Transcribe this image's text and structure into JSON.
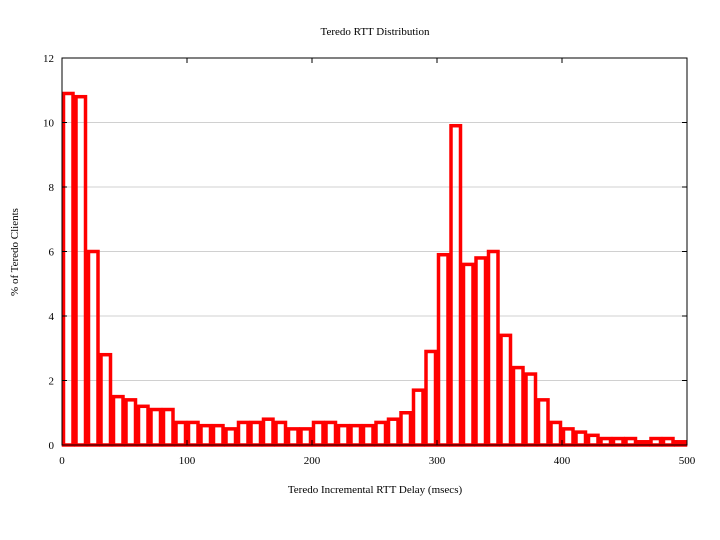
{
  "chart_data": {
    "type": "bar",
    "title": "Teredo RTT Distribution",
    "xlabel": "Teredo Incremental RTT Delay (msecs)",
    "ylabel": "% of Teredo Clients",
    "xlim": [
      0,
      500
    ],
    "ylim": [
      0,
      12
    ],
    "xticks": [
      "0",
      "100",
      "200",
      "300",
      "400",
      "500"
    ],
    "yticks": [
      "0",
      "2",
      "4",
      "6",
      "8",
      "10",
      "12"
    ],
    "grid": "horizontal",
    "bin_width": 10,
    "bar_color": "#ff0000",
    "bar_style": "outline",
    "x": [
      0,
      10,
      20,
      30,
      40,
      50,
      60,
      70,
      80,
      90,
      100,
      110,
      120,
      130,
      140,
      150,
      160,
      170,
      180,
      190,
      200,
      210,
      220,
      230,
      240,
      250,
      260,
      270,
      280,
      290,
      300,
      310,
      320,
      330,
      340,
      350,
      360,
      370,
      380,
      390,
      400,
      410,
      420,
      430,
      440,
      450,
      460,
      470,
      480,
      490
    ],
    "values": [
      10.9,
      10.8,
      6.0,
      2.8,
      1.5,
      1.4,
      1.2,
      1.1,
      1.1,
      0.7,
      0.7,
      0.6,
      0.6,
      0.5,
      0.7,
      0.7,
      0.8,
      0.7,
      0.5,
      0.5,
      0.7,
      0.7,
      0.6,
      0.6,
      0.6,
      0.7,
      0.8,
      1.0,
      1.7,
      2.9,
      5.9,
      9.9,
      5.6,
      5.8,
      6.0,
      3.4,
      2.4,
      2.2,
      1.4,
      0.7,
      0.5,
      0.4,
      0.3,
      0.2,
      0.2,
      0.2,
      0.1,
      0.2,
      0.2,
      0.1
    ]
  }
}
